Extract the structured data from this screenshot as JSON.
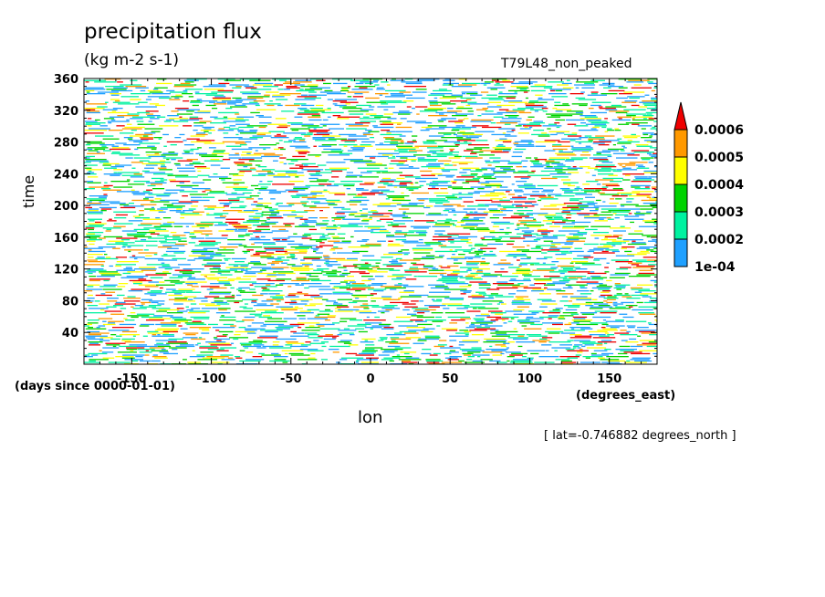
{
  "chart_data": {
    "type": "heatmap",
    "title": "precipitation flux",
    "units": "(kg m-2 s-1)",
    "run_label": "T79L48_non_peaked",
    "xlabel": "lon",
    "x_units": "(degrees_east)",
    "ylabel": "time",
    "y_units": "(days since 0000-01-01)",
    "slice_note": "[ lat=-0.746882 degrees_north ]",
    "xlim": [
      -180,
      180
    ],
    "ylim": [
      0,
      360
    ],
    "x_ticks": [
      -150,
      -100,
      -50,
      0,
      50,
      100,
      150
    ],
    "x_tick_labels": [
      "-150",
      "-100",
      "-50",
      "0",
      "50",
      "100",
      "150"
    ],
    "y_ticks": [
      40,
      80,
      120,
      160,
      200,
      240,
      280,
      320,
      360
    ],
    "y_tick_labels": [
      "40",
      "80",
      "120",
      "160",
      "200",
      "240",
      "280",
      "320",
      "360"
    ],
    "colorbar": {
      "levels": [
        0.0001,
        0.0002,
        0.0003,
        0.0004,
        0.0005,
        0.0006
      ],
      "level_labels": [
        "1e-04",
        "0.0002",
        "0.0003",
        "0.0004",
        "0.0005",
        "0.0006"
      ],
      "colors": [
        "#1fa0ff",
        "#00f2a0",
        "#00d300",
        "#ffff00",
        "#ff9900",
        "#ee0000"
      ],
      "extend": "max"
    }
  }
}
